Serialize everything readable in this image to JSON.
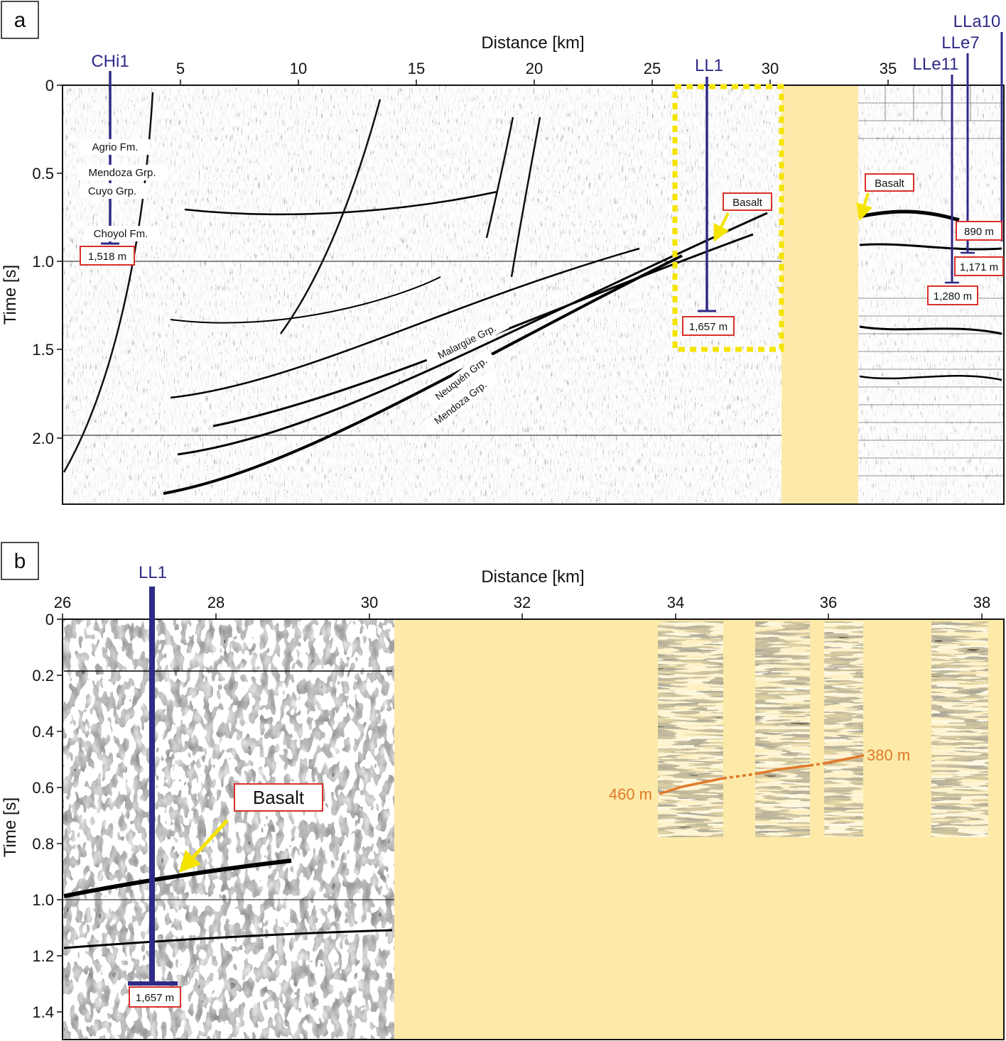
{
  "colors": {
    "well": "#2e2a86",
    "fill": "#fdeaa8",
    "yellow": "#f5e400",
    "orange": "#e07a2b",
    "redbox": "#d9302a"
  },
  "panel_a": {
    "label": "a",
    "xlabel": "Distance [km]",
    "ylabel": "Time [s]",
    "xticks": [
      "5",
      "10",
      "15",
      "20",
      "25",
      "30",
      "35"
    ],
    "yticks": [
      "0",
      "0.5",
      "1.0",
      "1.5",
      "2.0"
    ],
    "wells": [
      {
        "name": "CHi1",
        "depth": "1,518 m"
      },
      {
        "name": "LL1",
        "depth": "1,657 m"
      },
      {
        "name": "LLe11",
        "depth": "1,280 m"
      },
      {
        "name": "LLe7",
        "depth": "1,171 m"
      },
      {
        "name": "LLa10",
        "depth": "890 m"
      }
    ],
    "formations": [
      "Agrio Fm.",
      "Mendoza Grp.",
      "Cuyo Grp.",
      "Choyol Fm."
    ],
    "groups": [
      "Malargüe Grp.",
      "Neuquén Grp.",
      "Mendoza Grp."
    ],
    "basalt": "Basalt"
  },
  "panel_b": {
    "label": "b",
    "xlabel": "Distance [km]",
    "ylabel": "Time [s]",
    "xticks": [
      "26",
      "28",
      "30",
      "32",
      "34",
      "36",
      "38"
    ],
    "yticks": [
      "0",
      "0.2",
      "0.4",
      "0.6",
      "0.8",
      "1.0",
      "1.2",
      "1.4"
    ],
    "well": {
      "name": "LL1",
      "depth": "1,657 m"
    },
    "basalt": "Basalt",
    "horizon": {
      "start_label": "460 m",
      "end_label": "380 m"
    }
  }
}
